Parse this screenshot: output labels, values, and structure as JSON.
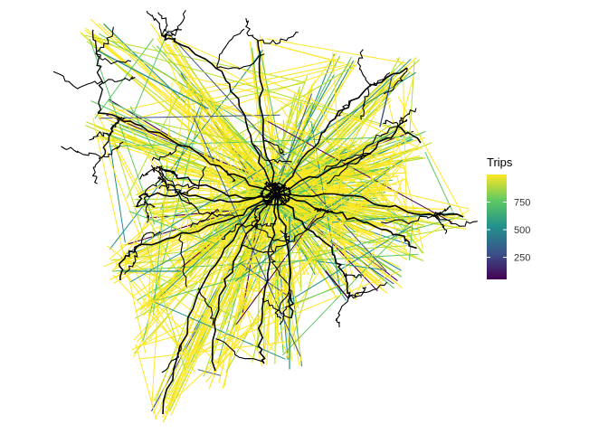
{
  "legend": {
    "title": "Trips",
    "ticks": [
      250,
      500,
      750
    ],
    "scale_min": 50,
    "scale_max": 1000,
    "palette": [
      "#440154",
      "#3b528b",
      "#21908c",
      "#5dc863",
      "#fde725"
    ]
  },
  "colors": {
    "background": "#ffffff",
    "network": "#000000",
    "desire_line_high": "#fde725",
    "desire_line_mid": "#5dc863",
    "desire_line_low": "#440154"
  }
}
